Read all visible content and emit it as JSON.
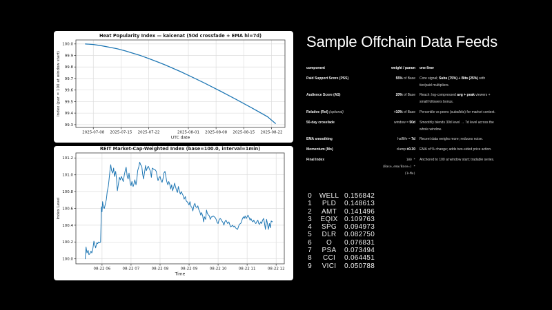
{
  "colors": {
    "background": "#000000",
    "panel": "#ffffff",
    "line": "#1f77b4",
    "grid": "#dcdcdc",
    "spine": "#3a3a3a",
    "heading_text": "#ffffff"
  },
  "right_panel": {
    "heading": "Sample Offchain Data Feeds",
    "table": {
      "headers": [
        "component",
        "weight / param",
        "one-liner"
      ],
      "rows": [
        {
          "component": [
            {
              "t": "Paid Support Score (PSS)"
            }
          ],
          "param": [
            {
              "t": "55%",
              "b": true
            },
            {
              "t": " of Base"
            }
          ],
          "oneliner": [
            {
              "t": "Core signal; "
            },
            {
              "t": "Subs (75%) + Bits (25%)",
              "b": true
            },
            {
              "t": " with tier/paid multipliers."
            }
          ]
        },
        {
          "component": [
            {
              "t": "Audience Score (AS)"
            }
          ],
          "param": [
            {
              "t": "20%",
              "b": true
            },
            {
              "t": " of Base"
            }
          ],
          "oneliner": [
            {
              "t": "Reach: log-compressed "
            },
            {
              "t": "avg + peak",
              "b": true
            },
            {
              "t": " viewers + small followers bonus."
            }
          ]
        },
        {
          "component": [
            {
              "t": "Relative (Rel) "
            },
            {
              "t": "(optional)",
              "i": true
            }
          ],
          "param": [
            {
              "t": "+10%",
              "b": true
            },
            {
              "t": " of Base"
            }
          ],
          "oneliner": [
            {
              "t": "Percentile vs peers (subs/bits) for market context."
            }
          ]
        },
        {
          "component": [
            {
              "t": "50-day crossfade"
            }
          ],
          "param": [
            {
              "t": "window = "
            },
            {
              "t": "50d",
              "b": true
            }
          ],
          "oneliner": [
            {
              "t": "Smoothly blends 30d level → 7d level across the whole window."
            }
          ]
        },
        {
          "component": [
            {
              "t": "EMA smoothing"
            }
          ],
          "param": [
            {
              "t": "halflife = "
            },
            {
              "t": "7d",
              "b": true
            }
          ],
          "oneliner": [
            {
              "t": "Recent data weighs more; reduces noise."
            }
          ]
        },
        {
          "component": [
            {
              "t": "Momentum (Mo)"
            }
          ],
          "param": [
            {
              "t": "clamp "
            },
            {
              "t": "±0.30",
              "b": true
            }
          ],
          "oneliner": [
            {
              "t": "EMA of % change; adds two-sided price action."
            }
          ]
        },
        {
          "component": [
            {
              "t": "Final Index"
            }
          ],
          "param": [
            {
              "t": "100 * (Base_ema/Base₀) *\n(1+Mo)",
              "m": true
            }
          ],
          "oneliner": [
            {
              "t": "Anchored to 100 at window start; tradable series."
            }
          ]
        }
      ]
    },
    "holdings": [
      {
        "idx": "0",
        "ticker": "WELL",
        "weight": "0.156842"
      },
      {
        "idx": "1",
        "ticker": "PLD",
        "weight": "0.148613"
      },
      {
        "idx": "2",
        "ticker": "AMT",
        "weight": "0.141496"
      },
      {
        "idx": "3",
        "ticker": "EQIX",
        "weight": "0.109763"
      },
      {
        "idx": "4",
        "ticker": "SPG",
        "weight": "0.094973"
      },
      {
        "idx": "5",
        "ticker": "DLR",
        "weight": "0.082750"
      },
      {
        "idx": "6",
        "ticker": "O",
        "weight": "0.076831"
      },
      {
        "idx": "7",
        "ticker": "PSA",
        "weight": "0.073494"
      },
      {
        "idx": "8",
        "ticker": "CCI",
        "weight": "0.064451"
      },
      {
        "idx": "9",
        "ticker": "VICI",
        "weight": "0.050788"
      }
    ]
  },
  "chart_data": [
    {
      "type": "line",
      "title": "Heat Popularity Index — kaicenat (50d crossfade + EMA hl=7d)",
      "xlabel": "UTC date",
      "ylabel": "Index (par = 100 at window start)",
      "line_color": "#1f77b4",
      "grid": true,
      "x_unit": "days since 2025-07-05",
      "xlim": [
        -1.4,
        51.4
      ],
      "ylim": [
        99.2755,
        100.0345
      ],
      "x_ticks": [
        {
          "v": 3,
          "label": "2025-07-08"
        },
        {
          "v": 10,
          "label": "2025-07-15"
        },
        {
          "v": 17,
          "label": "2025-07-22"
        },
        {
          "v": 27,
          "label": "2025-08-01"
        },
        {
          "v": 34,
          "label": "2025-08-08"
        },
        {
          "v": 41,
          "label": "2025-08-15"
        },
        {
          "v": 48,
          "label": "2025-08-22"
        }
      ],
      "y_ticks": [
        99.3,
        99.4,
        99.5,
        99.6,
        99.7,
        99.8,
        99.9,
        100.0
      ],
      "points": [
        [
          1,
          100.0
        ],
        [
          3,
          99.995
        ],
        [
          5,
          99.985
        ],
        [
          7,
          99.972
        ],
        [
          9,
          99.958
        ],
        [
          11,
          99.94
        ],
        [
          13,
          99.92
        ],
        [
          15,
          99.898
        ],
        [
          17,
          99.873
        ],
        [
          19,
          99.847
        ],
        [
          21,
          99.82
        ],
        [
          23,
          99.79
        ],
        [
          25,
          99.76
        ],
        [
          27,
          99.728
        ],
        [
          29,
          99.695
        ],
        [
          31,
          99.662
        ],
        [
          33,
          99.627
        ],
        [
          35,
          99.592
        ],
        [
          37,
          99.556
        ],
        [
          39,
          99.52
        ],
        [
          41,
          99.483
        ],
        [
          43,
          99.445
        ],
        [
          45,
          99.407
        ],
        [
          47,
          99.368
        ],
        [
          49,
          99.31
        ]
      ]
    },
    {
      "type": "line",
      "title": "REIT Market-Cap-Weighted Index (base=100.0, interval=1min)",
      "xlabel": "Time",
      "ylabel": "Index Level",
      "line_color": "#1f77b4",
      "grid": true,
      "x_unit": "hour of day on 2025-08-22",
      "xlim": [
        5.1,
        12.28
      ],
      "ylim": [
        99.94,
        101.26
      ],
      "x_ticks": [
        {
          "v": 6,
          "label": "08-22 06"
        },
        {
          "v": 7,
          "label": "08-22 07"
        },
        {
          "v": 8,
          "label": "08-22 08"
        },
        {
          "v": 9,
          "label": "08-22 09"
        },
        {
          "v": 10,
          "label": "08-22 10"
        },
        {
          "v": 11,
          "label": "08-22 11"
        },
        {
          "v": 12,
          "label": "08-22 12"
        }
      ],
      "y_ticks": [
        100.0,
        100.2,
        100.4,
        100.6,
        100.8,
        101.0,
        101.2
      ],
      "points": [
        [
          5.42,
          100.0
        ],
        [
          5.45,
          100.14
        ],
        [
          5.48,
          100.07
        ],
        [
          5.52,
          100.1
        ],
        [
          5.55,
          100.05
        ],
        [
          5.58,
          100.06
        ],
        [
          5.62,
          100.09
        ],
        [
          5.65,
          100.07
        ],
        [
          5.68,
          100.11
        ],
        [
          5.72,
          100.21
        ],
        [
          5.75,
          100.17
        ],
        [
          5.78,
          100.13
        ],
        [
          5.82,
          100.19
        ],
        [
          5.85,
          100.18
        ],
        [
          5.88,
          100.2
        ],
        [
          5.92,
          100.19
        ],
        [
          5.95,
          100.2
        ],
        [
          5.97,
          100.47
        ],
        [
          5.98,
          100.62
        ],
        [
          6.0,
          100.56
        ],
        [
          6.02,
          100.68
        ],
        [
          6.05,
          100.61
        ],
        [
          6.08,
          100.6
        ],
        [
          6.12,
          100.66
        ],
        [
          6.15,
          100.71
        ],
        [
          6.18,
          100.8
        ],
        [
          6.22,
          100.87
        ],
        [
          6.25,
          100.97
        ],
        [
          6.28,
          101.07
        ],
        [
          6.3,
          101.12
        ],
        [
          6.33,
          101.05
        ],
        [
          6.37,
          101.02
        ],
        [
          6.4,
          101.08
        ],
        [
          6.43,
          100.98
        ],
        [
          6.47,
          101.04
        ],
        [
          6.5,
          100.95
        ],
        [
          6.53,
          100.81
        ],
        [
          6.57,
          100.9
        ],
        [
          6.6,
          100.97
        ],
        [
          6.63,
          100.94
        ],
        [
          6.67,
          100.98
        ],
        [
          6.7,
          100.95
        ],
        [
          6.73,
          100.92
        ],
        [
          6.77,
          101.0
        ],
        [
          6.8,
          101.05
        ],
        [
          6.83,
          101.09
        ],
        [
          6.87,
          100.98
        ],
        [
          6.9,
          100.95
        ],
        [
          6.93,
          101.02
        ],
        [
          6.97,
          100.9
        ],
        [
          7.0,
          100.87
        ],
        [
          7.03,
          100.92
        ],
        [
          7.07,
          100.86
        ],
        [
          7.1,
          100.89
        ],
        [
          7.13,
          100.94
        ],
        [
          7.17,
          100.88
        ],
        [
          7.2,
          100.95
        ],
        [
          7.23,
          101.05
        ],
        [
          7.27,
          101.1
        ],
        [
          7.3,
          101.15
        ],
        [
          7.33,
          101.12
        ],
        [
          7.37,
          101.1
        ],
        [
          7.4,
          101.01
        ],
        [
          7.43,
          100.95
        ],
        [
          7.47,
          101.04
        ],
        [
          7.5,
          101.11
        ],
        [
          7.53,
          101.05
        ],
        [
          7.57,
          101.09
        ],
        [
          7.6,
          101.1
        ],
        [
          7.63,
          101.07
        ],
        [
          7.67,
          101.04
        ],
        [
          7.7,
          100.97
        ],
        [
          7.73,
          101.08
        ],
        [
          7.77,
          101.07
        ],
        [
          7.8,
          101.06
        ],
        [
          7.83,
          101.06
        ],
        [
          7.87,
          101.04
        ],
        [
          7.9,
          100.98
        ],
        [
          7.93,
          100.93
        ],
        [
          7.97,
          100.97
        ],
        [
          8.0,
          100.98
        ],
        [
          8.03,
          100.94
        ],
        [
          8.07,
          100.91
        ],
        [
          8.1,
          100.95
        ],
        [
          8.13,
          101.02
        ],
        [
          8.17,
          101.04
        ],
        [
          8.2,
          100.98
        ],
        [
          8.23,
          100.92
        ],
        [
          8.27,
          100.88
        ],
        [
          8.3,
          100.92
        ],
        [
          8.33,
          100.89
        ],
        [
          8.37,
          100.83
        ],
        [
          8.4,
          100.88
        ],
        [
          8.43,
          100.81
        ],
        [
          8.47,
          100.85
        ],
        [
          8.5,
          100.9
        ],
        [
          8.53,
          100.86
        ],
        [
          8.57,
          100.81
        ],
        [
          8.6,
          100.79
        ],
        [
          8.63,
          100.86
        ],
        [
          8.67,
          100.8
        ],
        [
          8.7,
          100.77
        ],
        [
          8.73,
          100.8
        ],
        [
          8.77,
          100.77
        ],
        [
          8.8,
          100.75
        ],
        [
          8.83,
          100.71
        ],
        [
          8.87,
          100.74
        ],
        [
          8.9,
          100.69
        ],
        [
          8.93,
          100.68
        ],
        [
          8.97,
          100.66
        ],
        [
          9.0,
          100.64
        ],
        [
          9.03,
          100.68
        ],
        [
          9.07,
          100.62
        ],
        [
          9.1,
          100.61
        ],
        [
          9.13,
          100.57
        ],
        [
          9.17,
          100.64
        ],
        [
          9.2,
          100.66
        ],
        [
          9.23,
          100.62
        ],
        [
          9.27,
          100.61
        ],
        [
          9.3,
          100.63
        ],
        [
          9.33,
          100.59
        ],
        [
          9.37,
          100.56
        ],
        [
          9.4,
          100.52
        ],
        [
          9.43,
          100.55
        ],
        [
          9.47,
          100.51
        ],
        [
          9.5,
          100.44
        ],
        [
          9.53,
          100.5
        ],
        [
          9.57,
          100.47
        ],
        [
          9.6,
          100.58
        ],
        [
          9.63,
          100.54
        ],
        [
          9.67,
          100.52
        ],
        [
          9.7,
          100.51
        ],
        [
          9.73,
          100.47
        ],
        [
          9.77,
          100.5
        ],
        [
          9.8,
          100.5
        ],
        [
          9.83,
          100.51
        ],
        [
          9.87,
          100.5
        ],
        [
          9.9,
          100.49
        ],
        [
          9.93,
          100.47
        ],
        [
          9.97,
          100.43
        ],
        [
          10.0,
          100.42
        ],
        [
          10.03,
          100.46
        ],
        [
          10.07,
          100.48
        ],
        [
          10.1,
          100.47
        ],
        [
          10.13,
          100.45
        ],
        [
          10.17,
          100.43
        ],
        [
          10.2,
          100.4
        ],
        [
          10.23,
          100.44
        ],
        [
          10.27,
          100.46
        ],
        [
          10.3,
          100.44
        ],
        [
          10.33,
          100.42
        ],
        [
          10.37,
          100.44
        ],
        [
          10.4,
          100.41
        ],
        [
          10.43,
          100.38
        ],
        [
          10.47,
          100.39
        ],
        [
          10.5,
          100.4
        ],
        [
          10.53,
          100.38
        ],
        [
          10.57,
          100.39
        ],
        [
          10.6,
          100.37
        ],
        [
          10.63,
          100.36
        ],
        [
          10.67,
          100.35
        ],
        [
          10.7,
          100.38
        ],
        [
          10.73,
          100.41
        ],
        [
          10.77,
          100.42
        ],
        [
          10.8,
          100.43
        ],
        [
          10.83,
          100.47
        ],
        [
          10.87,
          100.5
        ],
        [
          10.9,
          100.48
        ],
        [
          10.93,
          100.51
        ],
        [
          10.97,
          100.48
        ],
        [
          11.0,
          100.5
        ],
        [
          11.03,
          100.52
        ],
        [
          11.07,
          100.49
        ],
        [
          11.1,
          100.46
        ],
        [
          11.13,
          100.48
        ],
        [
          11.17,
          100.45
        ],
        [
          11.2,
          100.44
        ],
        [
          11.23,
          100.46
        ],
        [
          11.27,
          100.43
        ],
        [
          11.3,
          100.42
        ],
        [
          11.33,
          100.44
        ],
        [
          11.37,
          100.46
        ],
        [
          11.4,
          100.42
        ],
        [
          11.43,
          100.41
        ],
        [
          11.47,
          100.44
        ],
        [
          11.5,
          100.42
        ],
        [
          11.53,
          100.46
        ],
        [
          11.57,
          100.48
        ],
        [
          11.6,
          100.42
        ],
        [
          11.63,
          100.35
        ],
        [
          11.67,
          100.47
        ],
        [
          11.7,
          100.42
        ],
        [
          11.73,
          100.35
        ],
        [
          11.77,
          100.42
        ],
        [
          11.8,
          100.37
        ],
        [
          11.83,
          100.45
        ],
        [
          11.87,
          100.44
        ]
      ]
    }
  ]
}
